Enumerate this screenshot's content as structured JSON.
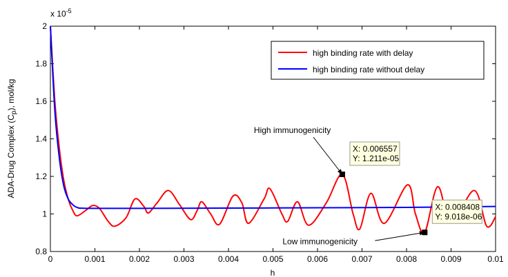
{
  "chart_data": {
    "type": "line",
    "y_multiplier_base": "x 10",
    "y_multiplier_exponent": "-5",
    "y_label_parts": [
      "ADA-Drug Complex (C",
      "p",
      "), mol/kg"
    ],
    "x_label": "h",
    "xlim": [
      0,
      0.01
    ],
    "ylim": [
      0.8,
      2
    ],
    "xticks": [
      0,
      0.001,
      0.002,
      0.003,
      0.004,
      0.005,
      0.006,
      0.007,
      0.008,
      0.009,
      0.01
    ],
    "yticks": [
      0.8,
      1,
      1.2,
      1.4,
      1.6,
      1.8,
      2
    ],
    "grid": false,
    "legend": "northeast",
    "series": [
      {
        "name": "high binding rate with delay",
        "color": "#ff0000",
        "x": [
          0,
          0.0001,
          0.0002,
          0.0003,
          0.0004,
          0.0005,
          0.0006,
          0.0008,
          0.00095,
          0.0011,
          0.0013,
          0.00145,
          0.0017,
          0.0019,
          0.0021,
          0.0022,
          0.0024,
          0.00265,
          0.0029,
          0.00315,
          0.0033,
          0.0034,
          0.0036,
          0.0038,
          0.0041,
          0.0043,
          0.00445,
          0.0048,
          0.00493,
          0.0052,
          0.00533,
          0.00555,
          0.0058,
          0.0062,
          0.006557,
          0.0068,
          0.00695,
          0.0072,
          0.0075,
          0.00802,
          0.0082,
          0.008408,
          0.0087,
          0.009,
          0.00952,
          0.0098,
          0.01
        ],
        "values": [
          2,
          1.6,
          1.35,
          1.18,
          1.08,
          1.02,
          0.99,
          1.02,
          1.045,
          1.03,
          0.96,
          0.935,
          0.98,
          1.08,
          1.04,
          1.005,
          1.06,
          1.125,
          1.05,
          0.97,
          1.02,
          1.065,
          1.0,
          0.945,
          1.095,
          1.06,
          0.95,
          1.08,
          1.135,
          1.0,
          0.96,
          1.065,
          0.94,
          1.06,
          1.211,
          1.0,
          0.92,
          1.11,
          0.95,
          1.155,
          1.0,
          0.9018,
          1.145,
          0.955,
          1.125,
          0.935,
          0.985
        ]
      },
      {
        "name": "high binding rate without delay",
        "color": "#0000ff",
        "x": [
          0,
          0.0001,
          0.0002,
          0.0003,
          0.0004,
          0.0005,
          0.0006,
          0.0008,
          0.002,
          0.005,
          0.008,
          0.01
        ],
        "values": [
          2,
          1.55,
          1.3,
          1.15,
          1.08,
          1.05,
          1.035,
          1.03,
          1.03,
          1.032,
          1.035,
          1.04
        ]
      }
    ],
    "datatips": [
      {
        "x": 0.006557,
        "y": 1.211,
        "x_label": "X: 0.006557",
        "y_label": "Y: 1.211e-05",
        "note": "High immunogenicity"
      },
      {
        "x": 0.008408,
        "y": 0.9018,
        "x_label": "X: 0.008408",
        "y_label": "Y: 9.018e-06",
        "note": "Low immunogenicity"
      }
    ]
  }
}
